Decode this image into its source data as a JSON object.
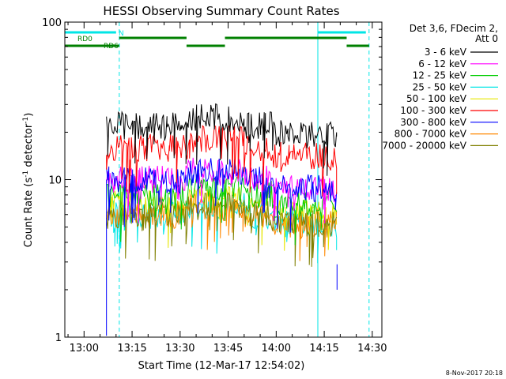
{
  "chart_data": {
    "type": "line",
    "title": "HESSI Observing Summary Count Rates",
    "xlabel": "Start Time (12-Mar-17 12:54:02)",
    "ylabel_main": "Count Rate (s",
    "ylabel_sup": "-1",
    "ylabel_tail": " detector",
    "ylabel_sup2": "-1",
    "ylabel_close": ")",
    "y_scale": "log",
    "ylim": [
      1,
      100
    ],
    "y_ticks": [
      {
        "value": 100,
        "label": "100"
      },
      {
        "value": 10,
        "label": "10"
      },
      {
        "value": 1,
        "label": "1"
      }
    ],
    "x_range": [
      "12:54",
      "14:33"
    ],
    "x_ticks": [
      "13:00",
      "13:15",
      "13:30",
      "13:45",
      "14:00",
      "14:15",
      "14:30"
    ],
    "legend_title_1": "Det 3,6, FDecim 2,",
    "legend_title_2": "Att 0",
    "legend_position": "outside-right",
    "series": [
      {
        "name": "3 - 6 keV",
        "color": "#000000",
        "approx_level": 22
      },
      {
        "name": "6 - 12 keV",
        "color": "#ff00ff",
        "approx_level": 10
      },
      {
        "name": "12 - 25 keV",
        "color": "#00cc00",
        "approx_level": 8
      },
      {
        "name": "25 - 50 keV",
        "color": "#00e6e6",
        "approx_level": 6
      },
      {
        "name": "50 - 100 keV",
        "color": "#e6e600",
        "approx_level": 7
      },
      {
        "name": "100 - 300 keV",
        "color": "#ff0000",
        "approx_level": 16
      },
      {
        "name": "300 - 800 keV",
        "color": "#0000ff",
        "approx_level": 10
      },
      {
        "name": "800 - 7000 keV",
        "color": "#ff8800",
        "approx_level": 6
      },
      {
        "name": "7000 - 20000 keV",
        "color": "#808000",
        "approx_level": 6
      }
    ],
    "data_time_range": [
      "13:07",
      "14:19"
    ],
    "annotations": {
      "rd0_label": "RD0",
      "rd6_label": "RD6",
      "n_label": "N",
      "saa_vlines": [
        "13:11",
        "14:13",
        "14:29"
      ]
    },
    "footer_date": "8-Nov-2017 20:18"
  }
}
